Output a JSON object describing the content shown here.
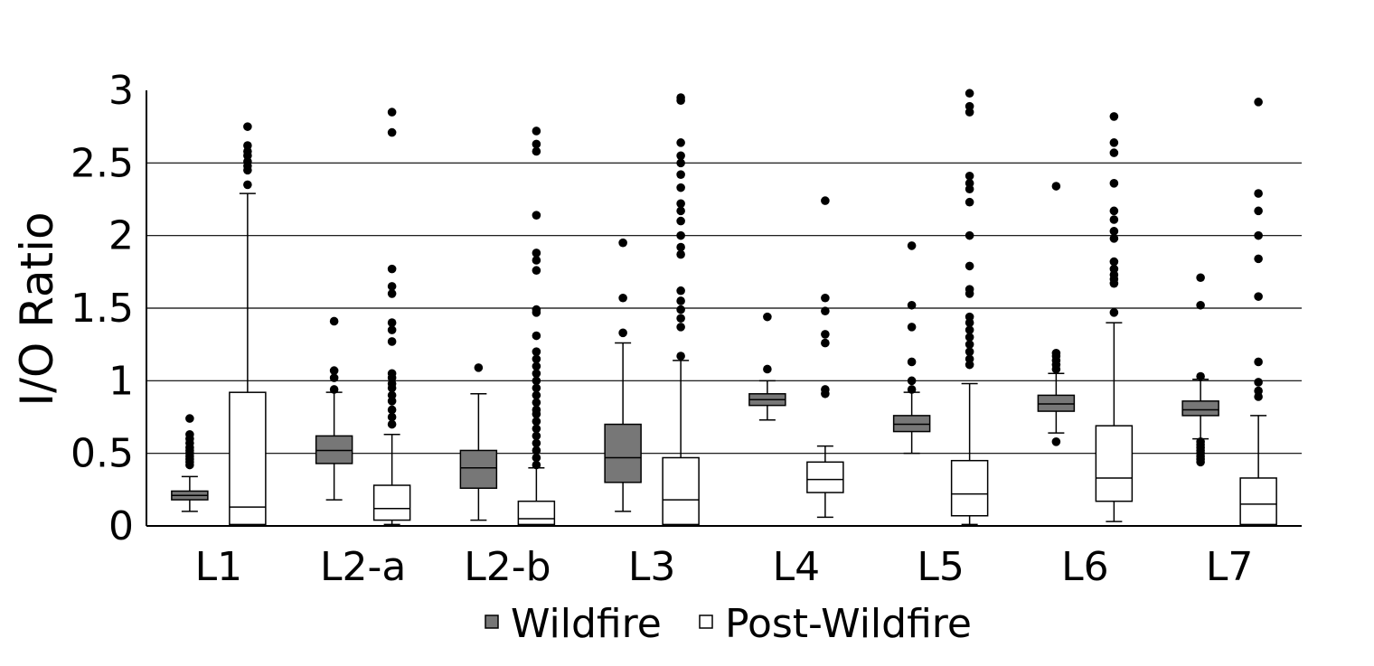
{
  "chart_data": {
    "type": "box",
    "ylabel": "I/O Ratio",
    "xlabel": "",
    "ylim": [
      0,
      3
    ],
    "yticks": [
      {
        "value": 0,
        "label": "0"
      },
      {
        "value": 0.5,
        "label": "0.5"
      },
      {
        "value": 1,
        "label": "1"
      },
      {
        "value": 1.5,
        "label": "1.5"
      },
      {
        "value": 2,
        "label": "2"
      },
      {
        "value": 2.5,
        "label": "2.5"
      },
      {
        "value": 3,
        "label": "3"
      }
    ],
    "grid": "horizontal",
    "legend_position": "bottom-center",
    "categories": [
      "L1",
      "L2-a",
      "L2-b",
      "L3",
      "L4",
      "L5",
      "L6",
      "L7"
    ],
    "series": [
      {
        "name": "Wildfire",
        "color": "#777777",
        "boxes": [
          {
            "whisker_low": 0.1,
            "q1": 0.18,
            "median": 0.21,
            "q3": 0.24,
            "whisker_high": 0.34,
            "outliers": [
              0.42,
              0.44,
              0.46,
              0.48,
              0.5,
              0.52,
              0.54,
              0.57,
              0.6,
              0.63,
              0.74
            ]
          },
          {
            "whisker_low": 0.18,
            "q1": 0.43,
            "median": 0.52,
            "q3": 0.62,
            "whisker_high": 0.92,
            "outliers": [
              0.94,
              1.02,
              1.07,
              1.41
            ]
          },
          {
            "whisker_low": 0.04,
            "q1": 0.26,
            "median": 0.4,
            "q3": 0.52,
            "whisker_high": 0.91,
            "outliers": [
              1.09
            ]
          },
          {
            "whisker_low": 0.1,
            "q1": 0.3,
            "median": 0.47,
            "q3": 0.7,
            "whisker_high": 1.26,
            "outliers": [
              1.33,
              1.57,
              1.95
            ]
          },
          {
            "whisker_low": 0.73,
            "q1": 0.83,
            "median": 0.87,
            "q3": 0.91,
            "whisker_high": 1.0,
            "outliers": [
              1.08,
              1.44
            ]
          },
          {
            "whisker_low": 0.5,
            "q1": 0.65,
            "median": 0.7,
            "q3": 0.76,
            "whisker_high": 0.92,
            "outliers": [
              0.94,
              1.0,
              1.13,
              1.37,
              1.52,
              1.93
            ]
          },
          {
            "whisker_low": 0.64,
            "q1": 0.79,
            "median": 0.84,
            "q3": 0.9,
            "whisker_high": 1.05,
            "outliers": [
              0.58,
              1.08,
              1.11,
              1.14,
              1.17,
              1.19,
              2.34
            ]
          },
          {
            "whisker_low": 0.6,
            "q1": 0.76,
            "median": 0.8,
            "q3": 0.86,
            "whisker_high": 1.01,
            "outliers": [
              0.44,
              0.46,
              0.48,
              0.5,
              0.52,
              0.54,
              0.56,
              0.58,
              1.03,
              1.52,
              1.71
            ]
          }
        ]
      },
      {
        "name": "Post-Wildfire",
        "color": "#ffffff",
        "boxes": [
          {
            "whisker_low": 0.01,
            "q1": 0.01,
            "median": 0.13,
            "q3": 0.92,
            "whisker_high": 2.29,
            "outliers": [
              2.35,
              2.45,
              2.48,
              2.51,
              2.55,
              2.58,
              2.62,
              2.75
            ]
          },
          {
            "whisker_low": 0.01,
            "q1": 0.04,
            "median": 0.12,
            "q3": 0.28,
            "whisker_high": 0.63,
            "outliers": [
              0.7,
              0.75,
              0.8,
              0.86,
              0.9,
              0.95,
              0.98,
              1.02,
              1.05,
              1.27,
              1.35,
              1.4,
              1.6,
              1.65,
              1.77,
              2.71,
              2.85
            ]
          },
          {
            "whisker_low": 0.01,
            "q1": 0.01,
            "median": 0.05,
            "q3": 0.17,
            "whisker_high": 0.4,
            "outliers": [
              0.42,
              0.47,
              0.52,
              0.57,
              0.62,
              0.67,
              0.72,
              0.77,
              0.8,
              0.85,
              0.9,
              0.95,
              1.0,
              1.05,
              1.1,
              1.15,
              1.2,
              1.31,
              1.47,
              1.49,
              1.76,
              1.83,
              1.88,
              2.14,
              2.58,
              2.63,
              2.72
            ]
          },
          {
            "whisker_low": 0.01,
            "q1": 0.01,
            "median": 0.18,
            "q3": 0.47,
            "whisker_high": 1.14,
            "outliers": [
              1.17,
              1.37,
              1.43,
              1.49,
              1.55,
              1.62,
              1.87,
              1.92,
              2.0,
              2.1,
              2.17,
              2.22,
              2.33,
              2.42,
              2.5,
              2.55,
              2.64,
              2.93,
              2.95
            ]
          },
          {
            "whisker_low": 0.06,
            "q1": 0.23,
            "median": 0.32,
            "q3": 0.44,
            "whisker_high": 0.55,
            "outliers": [
              0.91,
              0.94,
              1.26,
              1.32,
              1.48,
              1.57,
              2.24
            ]
          },
          {
            "whisker_low": 0.01,
            "q1": 0.07,
            "median": 0.22,
            "q3": 0.45,
            "whisker_high": 0.98,
            "outliers": [
              1.11,
              1.15,
              1.2,
              1.25,
              1.3,
              1.35,
              1.4,
              1.44,
              1.6,
              1.63,
              1.79,
              2.0,
              2.23,
              2.32,
              2.36,
              2.41,
              2.85,
              2.89,
              2.98
            ]
          },
          {
            "whisker_low": 0.03,
            "q1": 0.17,
            "median": 0.33,
            "q3": 0.69,
            "whisker_high": 1.4,
            "outliers": [
              1.47,
              1.67,
              1.7,
              1.73,
              1.77,
              1.82,
              1.98,
              2.03,
              2.11,
              2.17,
              2.36,
              2.57,
              2.64,
              2.82
            ]
          },
          {
            "whisker_low": 0.01,
            "q1": 0.01,
            "median": 0.15,
            "q3": 0.33,
            "whisker_high": 0.76,
            "outliers": [
              0.89,
              0.93,
              0.99,
              1.13,
              1.58,
              1.84,
              2.0,
              2.17,
              2.29,
              2.92
            ]
          }
        ]
      }
    ],
    "colors": {
      "wildfire_fill": "#777777",
      "post_fill": "#ffffff",
      "stroke": "#000000",
      "grid": "#000000"
    }
  }
}
